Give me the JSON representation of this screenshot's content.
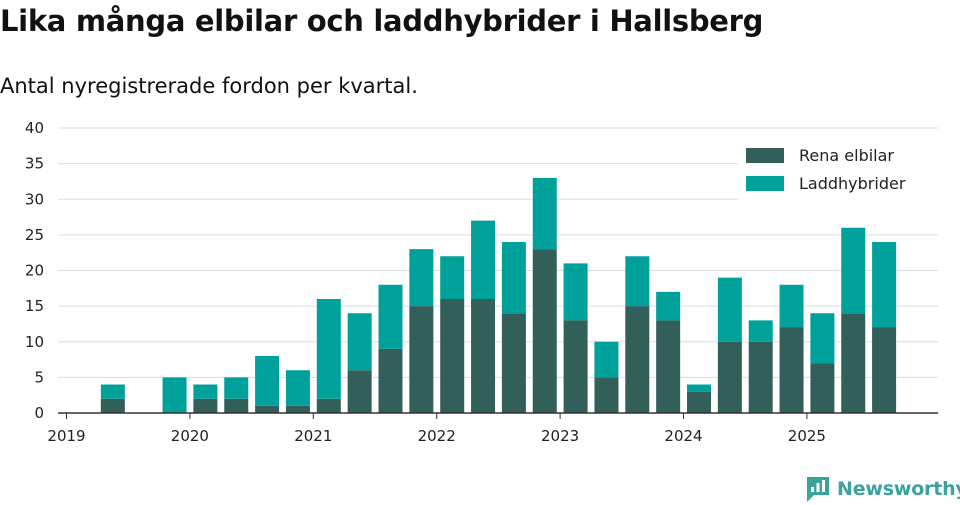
{
  "title": "Lika många elbilar och laddhybrider i Hallsberg",
  "subtitle": "Antal nyregistrerade fordon per kvartal.",
  "brand": "Newsworthy",
  "colors": {
    "elbilar": "#335f5b",
    "laddhybrider": "#00a19a",
    "grid": "#dddddd",
    "axis": "#333333",
    "brand": "#3aa39b"
  },
  "chart_data": {
    "type": "bar",
    "stacked": true,
    "title": "Lika många elbilar och laddhybrider i Hallsberg",
    "subtitle": "Antal nyregistrerade fordon per kvartal.",
    "xlabel": "",
    "ylabel": "",
    "ylim": [
      0,
      40
    ],
    "yticks": [
      0,
      5,
      10,
      15,
      20,
      25,
      30,
      35,
      40
    ],
    "xtick_labels": [
      "2019",
      "2020",
      "2021",
      "2022",
      "2023",
      "2024",
      "2025"
    ],
    "xtick_positions": [
      0,
      4,
      8,
      12,
      16,
      20,
      24
    ],
    "categories": [
      "2019 Q1",
      "2019 Q2",
      "2019 Q3",
      "2019 Q4",
      "2020 Q1",
      "2020 Q2",
      "2020 Q3",
      "2020 Q4",
      "2021 Q1",
      "2021 Q2",
      "2021 Q3",
      "2021 Q4",
      "2022 Q1",
      "2022 Q2",
      "2022 Q3",
      "2022 Q4",
      "2023 Q1",
      "2023 Q2",
      "2023 Q3",
      "2023 Q4",
      "2024 Q1",
      "2024 Q2",
      "2024 Q3",
      "2024 Q4",
      "2025 Q1",
      "2025 Q2",
      "2025 Q3"
    ],
    "legend_position": "top-right",
    "series": [
      {
        "name": "Rena elbilar",
        "values": [
          0,
          2,
          0,
          0,
          2,
          2,
          1,
          1,
          2,
          6,
          9,
          15,
          16,
          16,
          14,
          23,
          13,
          5,
          15,
          13,
          3,
          10,
          10,
          12,
          7,
          14,
          12
        ]
      },
      {
        "name": "Laddhybrider",
        "values": [
          0,
          2,
          0,
          5,
          2,
          3,
          7,
          5,
          14,
          8,
          9,
          8,
          6,
          11,
          10,
          10,
          8,
          5,
          7,
          4,
          1,
          9,
          3,
          6,
          7,
          12,
          12
        ]
      }
    ]
  }
}
